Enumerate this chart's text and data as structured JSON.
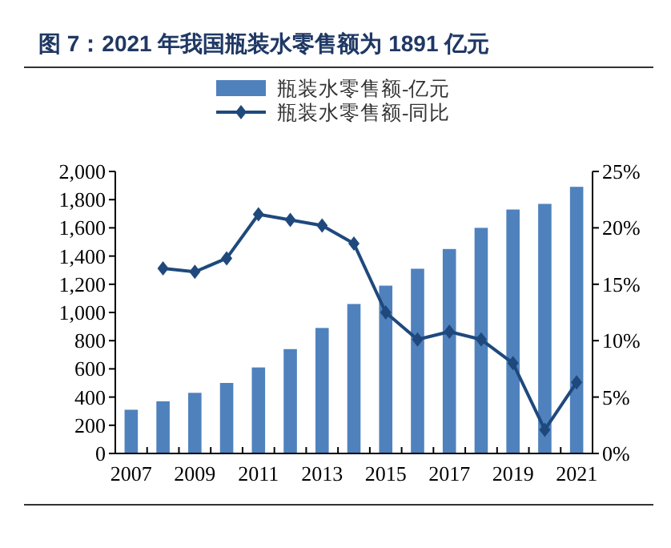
{
  "chart_data": {
    "type": "bar",
    "title": "图 7：2021 年我国瓶装水零售额为 1891 亿元",
    "categories": [
      "2007",
      null,
      "2009",
      null,
      "2011",
      null,
      "2013",
      null,
      "2015",
      null,
      "2017",
      null,
      "2019",
      null,
      "2021"
    ],
    "series": [
      {
        "name": "瓶装水零售额-亿元",
        "color": "#4f81bd",
        "values": [
          310,
          370,
          430,
          500,
          610,
          740,
          890,
          1060,
          1190,
          1310,
          1450,
          1600,
          1730,
          1770,
          1891
        ]
      },
      {
        "name": "瓶装水零售额-同比",
        "type": "line",
        "axis": "y2",
        "color": "#1f497d",
        "marker": "diamond",
        "line_style": "solid",
        "values": [
          null,
          16.4,
          16.1,
          17.3,
          21.2,
          20.7,
          20.2,
          18.6,
          12.5,
          10.1,
          10.8,
          10.1,
          8.0,
          2.1,
          6.3
        ]
      }
    ],
    "ylim": [
      0,
      2000
    ],
    "yticks": [
      0,
      200,
      400,
      600,
      800,
      {
        "value": 1000,
        "label": "1,000"
      },
      {
        "value": 1200,
        "label": "1,200"
      },
      {
        "value": 1400,
        "label": "1,400"
      },
      {
        "value": 1600,
        "label": "1,600"
      },
      {
        "value": 1800,
        "label": "1,800"
      },
      {
        "value": 2000,
        "label": "2,000"
      }
    ],
    "y2lim": [
      0,
      25
    ],
    "y2ticks": [
      {
        "value": 0,
        "label": "0%"
      },
      {
        "value": 5,
        "label": "5%"
      },
      {
        "value": 10,
        "label": "10%"
      },
      {
        "value": 15,
        "label": "15%"
      },
      {
        "value": 20,
        "label": "20%"
      },
      {
        "value": 25,
        "label": "25%"
      }
    ],
    "legend": "top",
    "grid": false
  }
}
